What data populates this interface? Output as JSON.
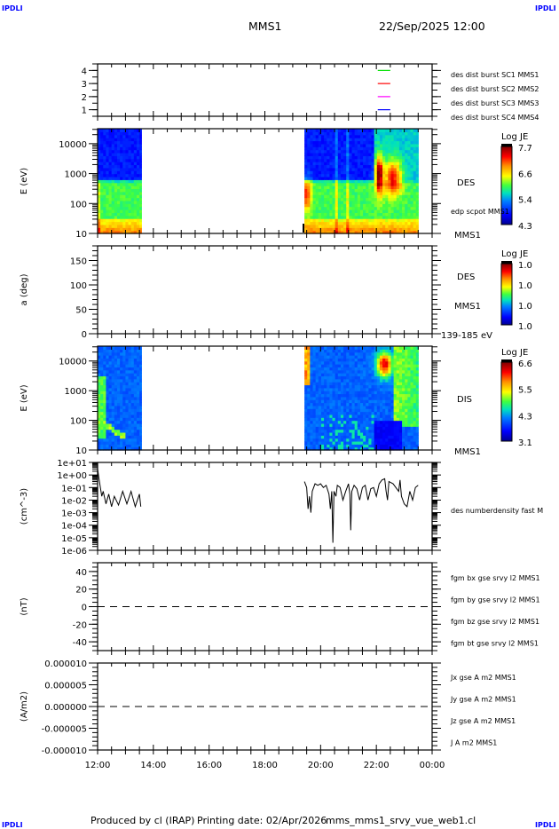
{
  "header": {
    "corner_left": "IPDLI",
    "corner_right": "IPDLI",
    "spacecraft": "MMS1",
    "datetime": "22/Sep/2025 12:00"
  },
  "footer": {
    "produced_by": "Produced by cl (IRAP)",
    "printing_date": "Printing date: 02/Apr/2026",
    "filename": "mms_mms1_srvy_vue_web1.cl",
    "corner_left": "IPDLI",
    "corner_right": "IPDLI"
  },
  "colors": {
    "red": "#ff0000",
    "green": "#00e000",
    "blue": "#0000ff",
    "magenta": "#ff00ff",
    "black": "#000000"
  },
  "chart_data": [
    {
      "id": "burst",
      "type": "line",
      "ylim": [
        0.5,
        4.5
      ],
      "ytick_labels": [
        "1",
        "2",
        "3",
        "4"
      ],
      "x_range": [
        "12:00",
        "00:00"
      ],
      "series": [
        {
          "name": "des dist burst SC1 MMS1",
          "color": "#0000ff",
          "y": 1,
          "x": [
            22.05,
            22.5
          ]
        },
        {
          "name": "des dist burst SC2 MMS2",
          "color": "#ff00ff",
          "y": 2,
          "x": [
            22.05,
            22.5
          ]
        },
        {
          "name": "des dist burst SC3 MMS3",
          "color": "#ff0000",
          "y": 3,
          "x": [
            22.05,
            22.5
          ]
        },
        {
          "name": "des dist burst SC4 MMS4",
          "color": "#00e000",
          "y": 4,
          "x": [
            22.05,
            22.5
          ]
        }
      ]
    },
    {
      "id": "des-energy",
      "type": "heatmap",
      "ylabel": "E (eV)",
      "yscale": "log",
      "ylim": [
        10,
        31623
      ],
      "ytick_labels": [
        "10",
        "100",
        "1000",
        "10000"
      ],
      "coverage_hours": [
        [
          12.0,
          13.57
        ],
        [
          19.42,
          23.5
        ]
      ],
      "side_labels": [
        "DES",
        "edp scpot MMS1",
        "MMS1"
      ],
      "colorbar": {
        "title": "Log JE",
        "labels": [
          "7.7",
          "6.6",
          "5.4",
          "4.3"
        ]
      }
    },
    {
      "id": "des-pitch",
      "type": "heatmap",
      "ylabel": "a (deg)",
      "yscale": "linear",
      "ylim": [
        0,
        180
      ],
      "ytick_labels": [
        "0",
        "50",
        "100",
        "150"
      ],
      "side_labels": [
        "DES",
        "MMS1",
        "139-185 eV"
      ],
      "colorbar": {
        "title": "Log JE",
        "labels": [
          "1.0",
          "1.0",
          "1.0",
          "1.0"
        ]
      }
    },
    {
      "id": "dis-energy",
      "type": "heatmap",
      "ylabel": "E (eV)",
      "yscale": "log",
      "ylim": [
        10,
        31623
      ],
      "ytick_labels": [
        "10",
        "100",
        "1000",
        "10000"
      ],
      "coverage_hours": [
        [
          12.0,
          13.57
        ],
        [
          19.42,
          23.5
        ]
      ],
      "side_labels": [
        "DIS",
        "MMS1"
      ],
      "colorbar": {
        "title": "Log JE",
        "labels": [
          "6.6",
          "5.5",
          "4.3",
          "3.1"
        ]
      }
    },
    {
      "id": "density",
      "type": "line",
      "ylabel": "(cm^-3)",
      "yscale": "log",
      "ylim": [
        1e-06,
        10
      ],
      "ytick_labels": [
        "1e-06",
        "1e-05",
        "1e-04",
        "1e-03",
        "1e-02",
        "1e-01",
        "1e+00",
        "1e+01"
      ],
      "series": [
        {
          "name": "des numberdensity fast M",
          "color": "#000000",
          "segments": [
            [
              [
                12.0,
                3
              ],
              [
                12.05,
                0.5
              ],
              [
                12.1,
                0.1
              ],
              [
                12.15,
                0.02
              ],
              [
                12.2,
                0.05
              ],
              [
                12.3,
                0.005
              ],
              [
                12.4,
                0.03
              ],
              [
                12.5,
                0.003
              ],
              [
                12.6,
                0.02
              ],
              [
                12.75,
                0.004
              ],
              [
                12.9,
                0.05
              ],
              [
                13.05,
                0.005
              ],
              [
                13.2,
                0.05
              ],
              [
                13.35,
                0.003
              ],
              [
                13.5,
                0.03
              ],
              [
                13.55,
                0.003
              ]
            ],
            [
              [
                19.42,
                0.3
              ],
              [
                19.5,
                0.1
              ],
              [
                19.55,
                0.002
              ],
              [
                19.6,
                0.02
              ],
              [
                19.65,
                0.001
              ],
              [
                19.7,
                0.05
              ],
              [
                19.8,
                0.2
              ],
              [
                19.9,
                0.15
              ],
              [
                20.0,
                0.2
              ],
              [
                20.1,
                0.1
              ],
              [
                20.2,
                0.15
              ],
              [
                20.3,
                0.03
              ],
              [
                20.35,
                0.002
              ],
              [
                20.4,
                0.05
              ],
              [
                20.44,
                4e-06
              ],
              [
                20.48,
                0.05
              ],
              [
                20.55,
                0.02
              ],
              [
                20.6,
                0.15
              ],
              [
                20.7,
                0.1
              ],
              [
                20.8,
                0.01
              ],
              [
                20.9,
                0.05
              ],
              [
                21.0,
                0.2
              ],
              [
                21.05,
                0.03
              ],
              [
                21.08,
                4e-05
              ],
              [
                21.12,
                0.05
              ],
              [
                21.2,
                0.15
              ],
              [
                21.3,
                0.08
              ],
              [
                21.4,
                0.01
              ],
              [
                21.5,
                0.1
              ],
              [
                21.6,
                0.15
              ],
              [
                21.7,
                0.01
              ],
              [
                21.8,
                0.08
              ],
              [
                21.9,
                0.1
              ],
              [
                22.0,
                0.02
              ],
              [
                22.1,
                0.2
              ],
              [
                22.2,
                0.4
              ],
              [
                22.3,
                0.5
              ],
              [
                22.35,
                0.05
              ],
              [
                22.4,
                0.01
              ],
              [
                22.45,
                0.3
              ],
              [
                22.6,
                0.2
              ],
              [
                22.7,
                0.1
              ],
              [
                22.8,
                0.05
              ],
              [
                22.85,
                0.4
              ],
              [
                22.9,
                0.02
              ],
              [
                23.0,
                0.005
              ],
              [
                23.1,
                0.003
              ],
              [
                23.2,
                0.05
              ],
              [
                23.3,
                0.01
              ],
              [
                23.4,
                0.1
              ],
              [
                23.5,
                0.15
              ]
            ]
          ]
        }
      ]
    },
    {
      "id": "bfield",
      "type": "line",
      "ylabel": "(nT)",
      "yscale": "linear",
      "ylim": [
        -50,
        50
      ],
      "ytick_labels": [
        "-40",
        "-20",
        "0",
        "20",
        "40"
      ],
      "zero_line": "dashed",
      "series": [
        {
          "name": "fgm bx gse srvy l2 MMS1",
          "color": "#ff0000"
        },
        {
          "name": "fgm by gse srvy l2 MMS1",
          "color": "#00e000"
        },
        {
          "name": "fgm bz gse srvy l2 MMS1",
          "color": "#0000ff"
        },
        {
          "name": "fgm bt gse srvy l2 MMS1",
          "color": "#000000"
        }
      ]
    },
    {
      "id": "current",
      "type": "line",
      "ylabel": "(A/m2)",
      "yscale": "linear",
      "ylim": [
        -1e-05,
        1e-05
      ],
      "ytick_labels": [
        "-0.000010",
        "-0.000005",
        "0.000000",
        "0.000005",
        "0.000010"
      ],
      "zero_line": "dashed",
      "xtick_labels": [
        "12:00",
        "14:00",
        "16:00",
        "18:00",
        "20:00",
        "22:00",
        "00:00"
      ],
      "series": [
        {
          "name": "Jx gse A m2 MMS1",
          "color": "#ff0000"
        },
        {
          "name": "Jy gse A m2 MMS1",
          "color": "#00e000"
        },
        {
          "name": "Jz gse A m2 MMS1",
          "color": "#0000ff"
        },
        {
          "name": "J A m2 MMS1",
          "color": "#000000"
        }
      ]
    }
  ]
}
